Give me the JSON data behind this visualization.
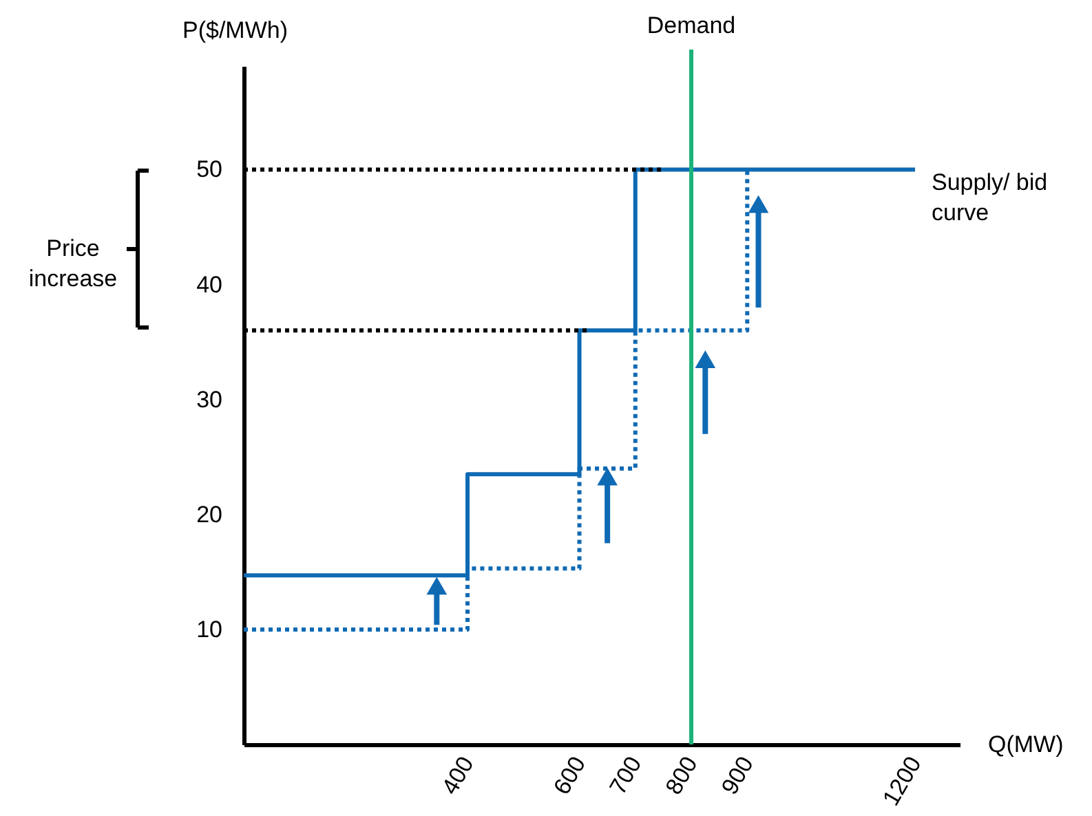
{
  "chart_data": {
    "type": "step",
    "xlabel": "Q(MW)",
    "ylabel": "P($/MWh)",
    "xlim": [
      0,
      1280
    ],
    "ylim": [
      0,
      59
    ],
    "xticks": [
      400,
      600,
      700,
      800,
      900,
      1200
    ],
    "yticks": [
      10,
      20,
      30,
      40,
      50
    ],
    "grid": false,
    "series": [
      {
        "type": "step",
        "color": "#0f6ab4",
        "line_style": "solid",
        "x": [
          0,
          400,
          600,
          700,
          1200
        ],
        "values": [
          14.7,
          23.5,
          36,
          50,
          50
        ]
      },
      {
        "type": "step",
        "color": "#0f6ab4",
        "line_style": "dotted",
        "x": [
          0,
          400,
          600,
          700,
          900
        ],
        "values": [
          10,
          15.3,
          24,
          36,
          50
        ]
      },
      {
        "type": "line",
        "color": "#000000",
        "line_style": "dotted",
        "x": [
          0,
          750
        ],
        "values": [
          50,
          50
        ]
      },
      {
        "type": "line",
        "color": "#000000",
        "line_style": "dotted",
        "x": [
          0,
          620
        ],
        "values": [
          36,
          36
        ]
      }
    ],
    "ref_lines": [
      {
        "axis": "x",
        "value": 800,
        "label": "Demand",
        "color": "#1db37a"
      }
    ],
    "annotations": [
      "Price increase",
      {
        "text": "Supply/ bid curve",
        "x": 1200,
        "y": 50
      }
    ]
  }
}
